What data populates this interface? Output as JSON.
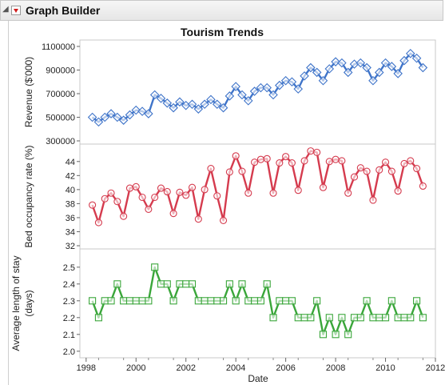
{
  "window": {
    "title": "Graph Builder",
    "disclosure_icon": "disclosure-triangle-icon",
    "menu_icon": "red-triangle-menu-icon"
  },
  "chart_data": {
    "type": "line",
    "title": "Tourism Trends",
    "xlabel": "Date",
    "x_ticks": [
      "1998",
      "2000",
      "2002",
      "2004",
      "2006",
      "2008",
      "2010",
      "2012"
    ],
    "xlim": [
      1997.75,
      2012
    ],
    "grid": false,
    "x": [
      1998.25,
      1998.5,
      1998.75,
      1999,
      1999.25,
      1999.5,
      1999.75,
      2000,
      2000.25,
      2000.5,
      2000.75,
      2001,
      2001.25,
      2001.5,
      2001.75,
      2002,
      2002.25,
      2002.5,
      2002.75,
      2003,
      2003.25,
      2003.5,
      2003.75,
      2004,
      2004.25,
      2004.5,
      2004.75,
      2005,
      2005.25,
      2005.5,
      2005.75,
      2006,
      2006.25,
      2006.5,
      2006.75,
      2007,
      2007.25,
      2007.5,
      2007.75,
      2008,
      2008.25,
      2008.5,
      2008.75,
      2009,
      2009.25,
      2009.5,
      2009.75,
      2010,
      2010.25,
      2010.5,
      2010.75,
      2011,
      2011.25,
      2011.5
    ],
    "panels": [
      {
        "ylabel": "Revenue ($'000)",
        "yticks": [
          "300000",
          "500000",
          "700000",
          "900000",
          "1100000"
        ],
        "ylim": [
          300000,
          1100000
        ],
        "marker": "diamond",
        "color": "#3f74c9",
        "values": [
          500000,
          460000,
          500000,
          530000,
          500000,
          475000,
          520000,
          560000,
          550000,
          530000,
          690000,
          660000,
          620000,
          580000,
          630000,
          600000,
          610000,
          570000,
          610000,
          650000,
          610000,
          580000,
          680000,
          760000,
          690000,
          640000,
          720000,
          750000,
          750000,
          690000,
          770000,
          810000,
          800000,
          740000,
          850000,
          920000,
          880000,
          810000,
          910000,
          970000,
          960000,
          880000,
          950000,
          960000,
          920000,
          810000,
          880000,
          960000,
          930000,
          870000,
          980000,
          1040000,
          1000000,
          920000
        ]
      },
      {
        "ylabel": "Bed occupancy rate (%)",
        "yticks": [
          "32",
          "34",
          "36",
          "38",
          "40",
          "42",
          "44"
        ],
        "ylim": [
          32,
          45.8
        ],
        "marker": "circle",
        "color": "#d53b4e",
        "values": [
          37.8,
          35.3,
          38.7,
          39.5,
          38.3,
          36.2,
          40.2,
          40.4,
          38.9,
          37.2,
          38.9,
          40.2,
          39.7,
          36.6,
          39.6,
          39.2,
          40.3,
          35.8,
          40.0,
          43.0,
          39.1,
          35.6,
          42.5,
          44.8,
          42.6,
          39.5,
          43.9,
          44.3,
          44.4,
          39.5,
          43.8,
          44.7,
          43.8,
          39.9,
          44.1,
          45.5,
          45.3,
          40.3,
          44.0,
          44.3,
          44.1,
          39.5,
          41.8,
          43.1,
          42.6,
          38.5,
          42.8,
          43.9,
          42.6,
          39.8,
          43.7,
          44.1,
          43.0,
          40.5
        ]
      },
      {
        "ylabel": "Average length of stay (days)",
        "ylabel_lines": [
          "Average length of stay",
          "(days)"
        ],
        "yticks": [
          "2.0",
          "2.1",
          "2.2",
          "2.3",
          "2.4",
          "2.5"
        ],
        "ylim": [
          1.98,
          2.58
        ],
        "marker": "square",
        "color": "#3aa63a",
        "values": [
          2.3,
          2.2,
          2.3,
          2.3,
          2.4,
          2.3,
          2.3,
          2.3,
          2.3,
          2.3,
          2.5,
          2.4,
          2.4,
          2.3,
          2.4,
          2.4,
          2.4,
          2.3,
          2.3,
          2.3,
          2.3,
          2.3,
          2.4,
          2.3,
          2.4,
          2.3,
          2.3,
          2.3,
          2.4,
          2.2,
          2.3,
          2.3,
          2.3,
          2.2,
          2.2,
          2.2,
          2.3,
          2.1,
          2.2,
          2.1,
          2.2,
          2.1,
          2.2,
          2.2,
          2.3,
          2.2,
          2.2,
          2.2,
          2.3,
          2.2,
          2.2,
          2.2,
          2.3,
          2.2
        ]
      }
    ]
  }
}
